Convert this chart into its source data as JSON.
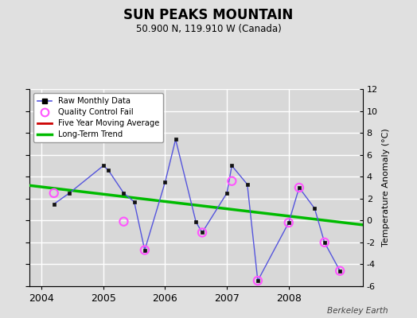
{
  "title": "SUN PEAKS MOUNTAIN",
  "subtitle": "50.900 N, 119.910 W (Canada)",
  "credit": "Berkeley Earth",
  "raw_x": [
    2004.2,
    2004.45,
    2005.0,
    2005.08,
    2005.33,
    2005.5,
    2005.67,
    2006.0,
    2006.17,
    2006.5,
    2006.6,
    2007.0,
    2007.08,
    2007.33,
    2007.5,
    2008.0,
    2008.17,
    2008.42,
    2008.58,
    2008.83
  ],
  "raw_y": [
    1.5,
    2.5,
    5.0,
    4.6,
    2.5,
    1.7,
    -2.7,
    3.5,
    7.4,
    -0.15,
    -1.1,
    2.5,
    5.0,
    3.3,
    -5.5,
    -0.2,
    3.0,
    1.1,
    -2.0,
    -4.6
  ],
  "qc_x": [
    2004.2,
    2005.33,
    2005.67,
    2006.6,
    2007.08,
    2007.5,
    2008.0,
    2008.17,
    2008.58,
    2008.83
  ],
  "qc_y": [
    2.5,
    -0.1,
    -2.7,
    -1.1,
    3.6,
    -5.5,
    -0.2,
    3.0,
    -2.0,
    -4.6
  ],
  "trend_x": [
    2003.8,
    2009.2
  ],
  "trend_y": [
    3.2,
    -0.4
  ],
  "xlim": [
    2003.8,
    2009.2
  ],
  "ylim": [
    -6,
    12
  ],
  "yticks": [
    -6,
    -4,
    -2,
    0,
    2,
    4,
    6,
    8,
    10,
    12
  ],
  "xticks": [
    2004,
    2005,
    2006,
    2007,
    2008
  ],
  "bg_color": "#e0e0e0",
  "plot_bg_color": "#d8d8d8",
  "raw_line_color": "#5555dd",
  "raw_marker_color": "#111111",
  "qc_marker_color": "#ff55ff",
  "trend_color": "#00bb00",
  "moving_avg_color": "#cc0000",
  "grid_color": "#ffffff",
  "grid_lw": 1.0
}
